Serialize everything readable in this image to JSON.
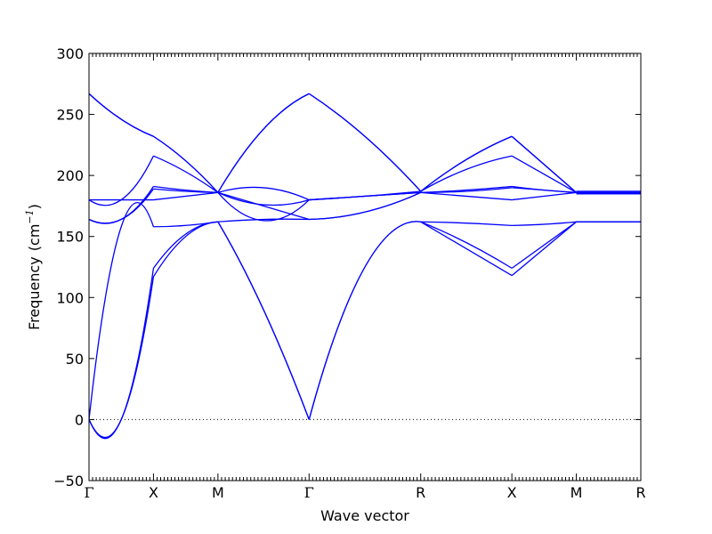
{
  "chart_data": {
    "type": "line",
    "xlabel": "Wave vector",
    "ylabel": "Frequency",
    "ylabel_unit": "(cm",
    "ylabel_unit_exp": "−1",
    "ylabel_unit_close": ")",
    "ylim": [
      -50,
      300
    ],
    "yticks": [
      -50,
      0,
      50,
      100,
      150,
      200,
      250,
      300
    ],
    "ytick_labels": [
      "−50",
      "0",
      "50",
      "100",
      "150",
      "200",
      "250",
      "300"
    ],
    "k_points": [
      {
        "label": "Γ",
        "x": 0
      },
      {
        "label": "X",
        "x": 0.5
      },
      {
        "label": "M",
        "x": 1.0
      },
      {
        "label": "Γ",
        "x": 1.707
      },
      {
        "label": "R",
        "x": 2.573
      },
      {
        "label": "X",
        "x": 3.28
      },
      {
        "label": "M",
        "x": 3.78
      },
      {
        "label": "R",
        "x": 4.28
      }
    ],
    "xlim": [
      0,
      4.28
    ],
    "zero_line": true,
    "line_color": "#0000ff",
    "segments": [
      {
        "name": "Γ-X",
        "bands": [
          [
            0,
            0,
            117
          ],
          [
            0,
            0,
            124
          ],
          [
            0,
            158,
            158
          ],
          [
            164,
            164,
            191
          ],
          [
            164,
            164,
            189
          ],
          [
            180,
            180,
            180
          ],
          [
            180,
            180,
            216
          ],
          [
            267,
            246,
            232
          ],
          [
            267,
            246,
            232
          ]
        ]
      },
      {
        "name": "X-M",
        "bands": [
          [
            117,
            150,
            162
          ],
          [
            124,
            152,
            162
          ],
          [
            158,
            159,
            162
          ],
          [
            191,
            188,
            186
          ],
          [
            189,
            187,
            186
          ],
          [
            180,
            183,
            186
          ],
          [
            216,
            203,
            186
          ],
          [
            232,
            212,
            186
          ],
          [
            232,
            212,
            186
          ]
        ]
      },
      {
        "name": "M-Γ",
        "bands": [
          [
            162,
            90,
            0
          ],
          [
            162,
            90,
            0
          ],
          [
            162,
            164,
            164
          ],
          [
            186,
            175,
            164
          ],
          [
            186,
            163,
            180
          ],
          [
            186,
            176,
            180
          ],
          [
            186,
            190,
            180
          ],
          [
            186,
            238,
            267
          ],
          [
            186,
            238,
            267
          ]
        ]
      },
      {
        "name": "Γ-R",
        "bands": [
          [
            0,
            125,
            162
          ],
          [
            0,
            125,
            162
          ],
          [
            164,
            170,
            186
          ],
          [
            164,
            170,
            186
          ],
          [
            180,
            183,
            186
          ],
          [
            180,
            183,
            186
          ],
          [
            180,
            183,
            187
          ],
          [
            267,
            232,
            187
          ],
          [
            267,
            232,
            187
          ]
        ]
      },
      {
        "name": "R-X",
        "bands": [
          [
            162,
            140,
            118
          ],
          [
            162,
            145,
            124
          ],
          [
            162,
            161,
            159
          ],
          [
            186,
            183,
            180
          ],
          [
            186,
            187,
            190
          ],
          [
            186,
            188,
            191
          ],
          [
            187,
            205,
            216
          ],
          [
            187,
            213,
            232
          ],
          [
            187,
            213,
            232
          ]
        ]
      },
      {
        "name": "X-M",
        "bands": [
          [
            118,
            140,
            162
          ],
          [
            124,
            143,
            162
          ],
          [
            159,
            160,
            162
          ],
          [
            180,
            183,
            186
          ],
          [
            190,
            188,
            186
          ],
          [
            191,
            188,
            186
          ],
          [
            216,
            201,
            186
          ],
          [
            232,
            209,
            186
          ],
          [
            232,
            209,
            186
          ]
        ]
      },
      {
        "name": "M-R",
        "bands": [
          [
            162,
            162,
            162
          ],
          [
            162,
            162,
            162
          ],
          [
            162,
            162,
            162
          ],
          [
            185,
            185,
            185
          ],
          [
            185,
            185,
            185
          ],
          [
            186,
            186,
            186
          ],
          [
            186,
            186,
            186
          ],
          [
            187,
            187,
            187
          ],
          [
            187,
            187,
            187
          ]
        ]
      }
    ]
  }
}
